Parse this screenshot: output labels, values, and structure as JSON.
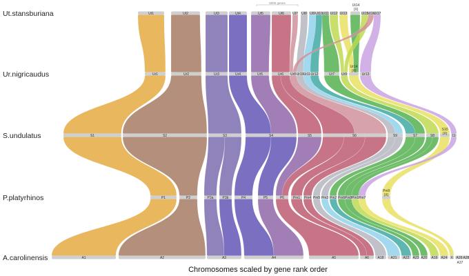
{
  "caption": "Chromosomes scaled by gene rank order",
  "scalebar_label": "5000 genes",
  "colors": {
    "orange": "#e3a73a",
    "brown": "#a4785f",
    "purple": "#7868ac",
    "violet": "#5d4fb3",
    "mauve": "#8c62a6",
    "rose": "#b9566b",
    "pink": "#cf8d99",
    "gray": "#b3b3bd",
    "lightblue": "#8fd1ec",
    "teal": "#3aa6a0",
    "green": "#4fae4a",
    "lime": "#bcd94a",
    "yellow": "#e8df5c",
    "lavender": "#c8a0e0",
    "chromosome": "#cfcfcf"
  },
  "tracks": [
    {
      "species": "Ut.stansburiana",
      "chromosomes": [
        {
          "label": "Ut1"
        },
        {
          "label": "Ut2"
        },
        {
          "label": "Ut3"
        },
        {
          "label": "Ut4"
        },
        {
          "label": "Ut5"
        },
        {
          "label": "Ut6"
        },
        {
          "label": "Ut7"
        },
        {
          "label": "Ut8"
        },
        {
          "label": "Ut9"
        },
        {
          "label": "Ut10"
        },
        {
          "label": "Ut11"
        },
        {
          "label": "Ut12"
        },
        {
          "label": "Ut13"
        },
        {
          "label": "Ut14 (X)"
        },
        {
          "label": "Ut15"
        },
        {
          "label": "Ut16"
        },
        {
          "label": "Ut17"
        }
      ]
    },
    {
      "species": "Ur.nigricaudus",
      "chromosomes": [
        {
          "label": "Ur1"
        },
        {
          "label": "Ur2"
        },
        {
          "label": "Ur3"
        },
        {
          "label": "Ur4"
        },
        {
          "label": "Ur5"
        },
        {
          "label": "Ur6"
        },
        {
          "label": "Ur8"
        },
        {
          "label": "Ur10"
        },
        {
          "label": "Ur11"
        },
        {
          "label": "Ur12"
        },
        {
          "label": "Ur7"
        },
        {
          "label": "Ur9"
        },
        {
          "label": "Ur14 (X)"
        },
        {
          "label": "Ur13"
        }
      ]
    },
    {
      "species": "S.undulatus",
      "chromosomes": [
        {
          "label": "S1"
        },
        {
          "label": "S2"
        },
        {
          "label": "S3"
        },
        {
          "label": "S4"
        },
        {
          "label": "S5"
        },
        {
          "label": "S6"
        },
        {
          "label": "S9"
        },
        {
          "label": "S7"
        },
        {
          "label": "S8"
        },
        {
          "label": "S10 (X)"
        },
        {
          "label": "11"
        }
      ]
    },
    {
      "species": "P.platyrhinos",
      "chromosomes": [
        {
          "label": "P1"
        },
        {
          "label": "P2"
        },
        {
          "label": "P3a"
        },
        {
          "label": "P3b"
        },
        {
          "label": "P4"
        },
        {
          "label": "P5"
        },
        {
          "label": "P6"
        },
        {
          "label": "Pm1"
        },
        {
          "label": "Pm4"
        },
        {
          "label": "Pm5"
        },
        {
          "label": "Pm3"
        },
        {
          "label": "Pm2"
        },
        {
          "label": "Pm6"
        },
        {
          "label": "Pm8"
        },
        {
          "label": "Pm1"
        },
        {
          "label": "Pm7"
        },
        {
          "label": "Pm9 (X)"
        }
      ]
    },
    {
      "species": "A.carolinensis",
      "chromosomes": [
        {
          "label": "A1"
        },
        {
          "label": "A2"
        },
        {
          "label": "A3"
        },
        {
          "label": "A4"
        },
        {
          "label": "A5"
        },
        {
          "label": "A6"
        },
        {
          "label": "A18"
        },
        {
          "label": "A21"
        },
        {
          "label": "A22"
        },
        {
          "label": "A23"
        },
        {
          "label": "A20"
        },
        {
          "label": "A16"
        },
        {
          "label": "A24"
        },
        {
          "label": "X"
        },
        {
          "label": "A26"
        },
        {
          "label": "A28"
        },
        {
          "label": "A37"
        }
      ]
    }
  ]
}
